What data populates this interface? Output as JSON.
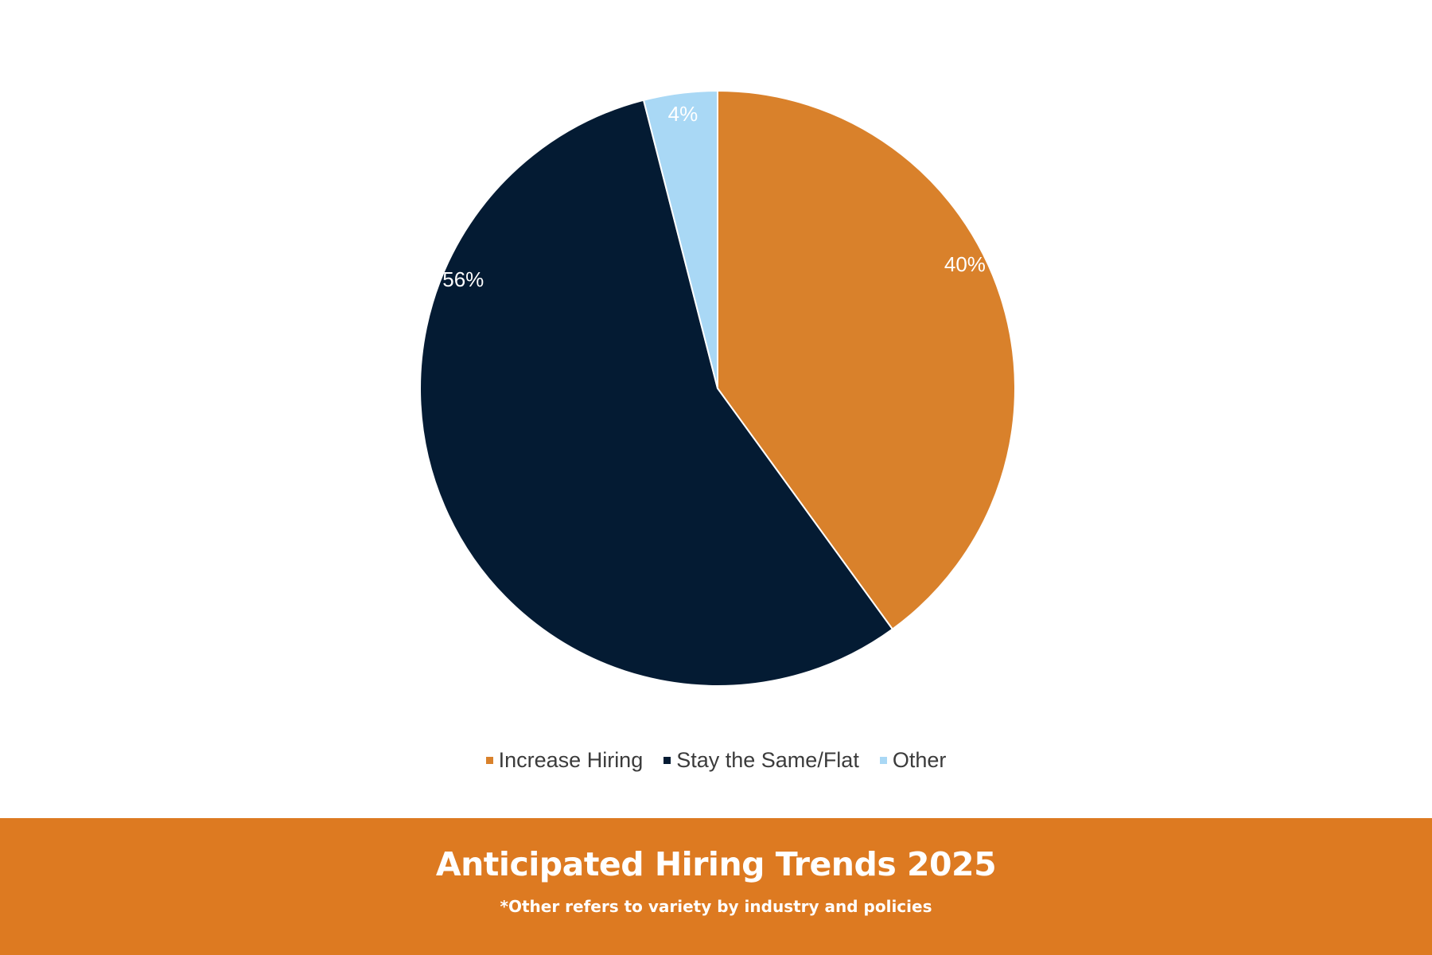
{
  "chart_data": {
    "type": "pie",
    "categories": [
      "Increase Hiring",
      "Stay the Same/Flat",
      "Other"
    ],
    "values": [
      40,
      56,
      4
    ],
    "data_labels": [
      "40%",
      "56%",
      "4%"
    ],
    "colors": [
      "#d9812b",
      "#041b33",
      "#a9d8f5"
    ],
    "legend_placement": "bottom"
  },
  "footer": {
    "title": "Anticipated Hiring Trends 2025",
    "note": "*Other refers to variety by industry and policies",
    "background": "#dd7a21"
  }
}
